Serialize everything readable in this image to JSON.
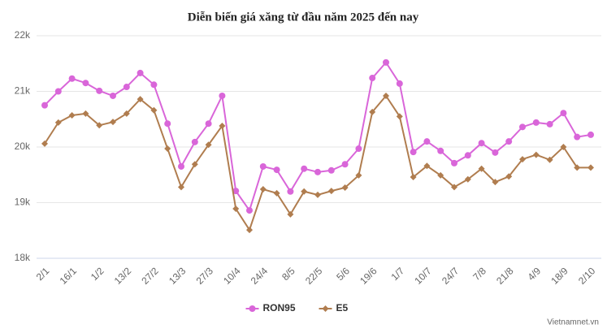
{
  "chart_data": {
    "type": "line",
    "title": "Diễn biến giá xăng từ đầu năm 2025 đến nay",
    "source": "Vietnamnet.vn",
    "categories": [
      "2/1",
      null,
      "16/1",
      null,
      "1/2",
      null,
      "13/2",
      null,
      "27/2",
      null,
      "13/3",
      null,
      "27/3",
      null,
      "10/4",
      null,
      "24/4",
      null,
      "8/5",
      null,
      "22/5",
      null,
      "5/6",
      null,
      "19/6",
      null,
      "1/7",
      null,
      "10/7",
      null,
      "24/7",
      null,
      "7/8",
      null,
      "21/8",
      null,
      "4/9",
      null,
      "18/9",
      null,
      "2/10"
    ],
    "series": [
      {
        "name": "RON95",
        "color": "#d966d9",
        "marker": "circle",
        "values": [
          20750,
          21000,
          21230,
          21150,
          21010,
          20920,
          21080,
          21330,
          21120,
          20420,
          19650,
          20090,
          20420,
          20920,
          19210,
          18860,
          19650,
          19590,
          19200,
          19610,
          19550,
          19580,
          19690,
          19970,
          21240,
          21520,
          21140,
          19910,
          20100,
          19930,
          19710,
          19850,
          20070,
          19900,
          20100,
          20360,
          20440,
          20410,
          20610,
          20180,
          20220
        ]
      },
      {
        "name": "E5",
        "color": "#b07d4f",
        "marker": "diamond",
        "values": [
          20060,
          20440,
          20570,
          20600,
          20390,
          20450,
          20600,
          20860,
          20660,
          19970,
          19280,
          19690,
          20040,
          20380,
          18890,
          18510,
          19240,
          19170,
          18790,
          19200,
          19140,
          19210,
          19270,
          19490,
          20630,
          20920,
          20550,
          19460,
          19660,
          19490,
          19280,
          19420,
          19610,
          19370,
          19470,
          19780,
          19860,
          19770,
          20000,
          19630,
          19630
        ]
      }
    ],
    "ylim": [
      18000,
      22000
    ],
    "yticks": [
      {
        "value": 18000,
        "label": "18k"
      },
      {
        "value": 19000,
        "label": "19k"
      },
      {
        "value": 20000,
        "label": "20k"
      },
      {
        "value": 21000,
        "label": "21k"
      },
      {
        "value": 22000,
        "label": "22k"
      }
    ],
    "grid": true,
    "legend": "bottom"
  }
}
